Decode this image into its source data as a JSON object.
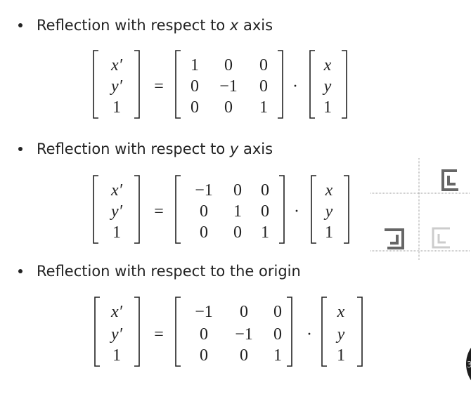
{
  "items": [
    {
      "heading": [
        {
          "text": "Reflection with respect to "
        },
        {
          "text": "x",
          "italic": true
        },
        {
          "text": " axis"
        }
      ],
      "equation": {
        "lhs": [
          "x′",
          "y′",
          "1"
        ],
        "operator": "=",
        "matrix": [
          [
            "1",
            "0",
            "0"
          ],
          [
            "0",
            "−1",
            "0"
          ],
          [
            "0",
            "0",
            "1"
          ]
        ],
        "dot": "·",
        "rhs": [
          "x",
          "y",
          "1"
        ]
      }
    },
    {
      "heading": [
        {
          "text": "Reflection with respect to "
        },
        {
          "text": "y",
          "italic": true
        },
        {
          "text": " axis"
        }
      ],
      "equation": {
        "lhs": [
          "x′",
          "y′",
          "1"
        ],
        "operator": "=",
        "matrix": [
          [
            "−1",
            "0",
            "0"
          ],
          [
            "0",
            "1",
            "0"
          ],
          [
            "0",
            "0",
            "1"
          ]
        ],
        "dot": "·",
        "rhs": [
          "x",
          "y",
          "1"
        ]
      }
    },
    {
      "heading": [
        {
          "text": "Reflection with respect to the origin"
        }
      ],
      "equation": {
        "lhs": [
          "x′",
          "y′",
          "1"
        ],
        "operator": "=",
        "matrix": [
          [
            "−1",
            "0",
            "0"
          ],
          [
            "0",
            "−1",
            "0"
          ],
          [
            "0",
            "0",
            "1"
          ]
        ],
        "dot": "·",
        "rhs": [
          "x",
          "y",
          "1"
        ]
      }
    }
  ],
  "page_number": "3"
}
